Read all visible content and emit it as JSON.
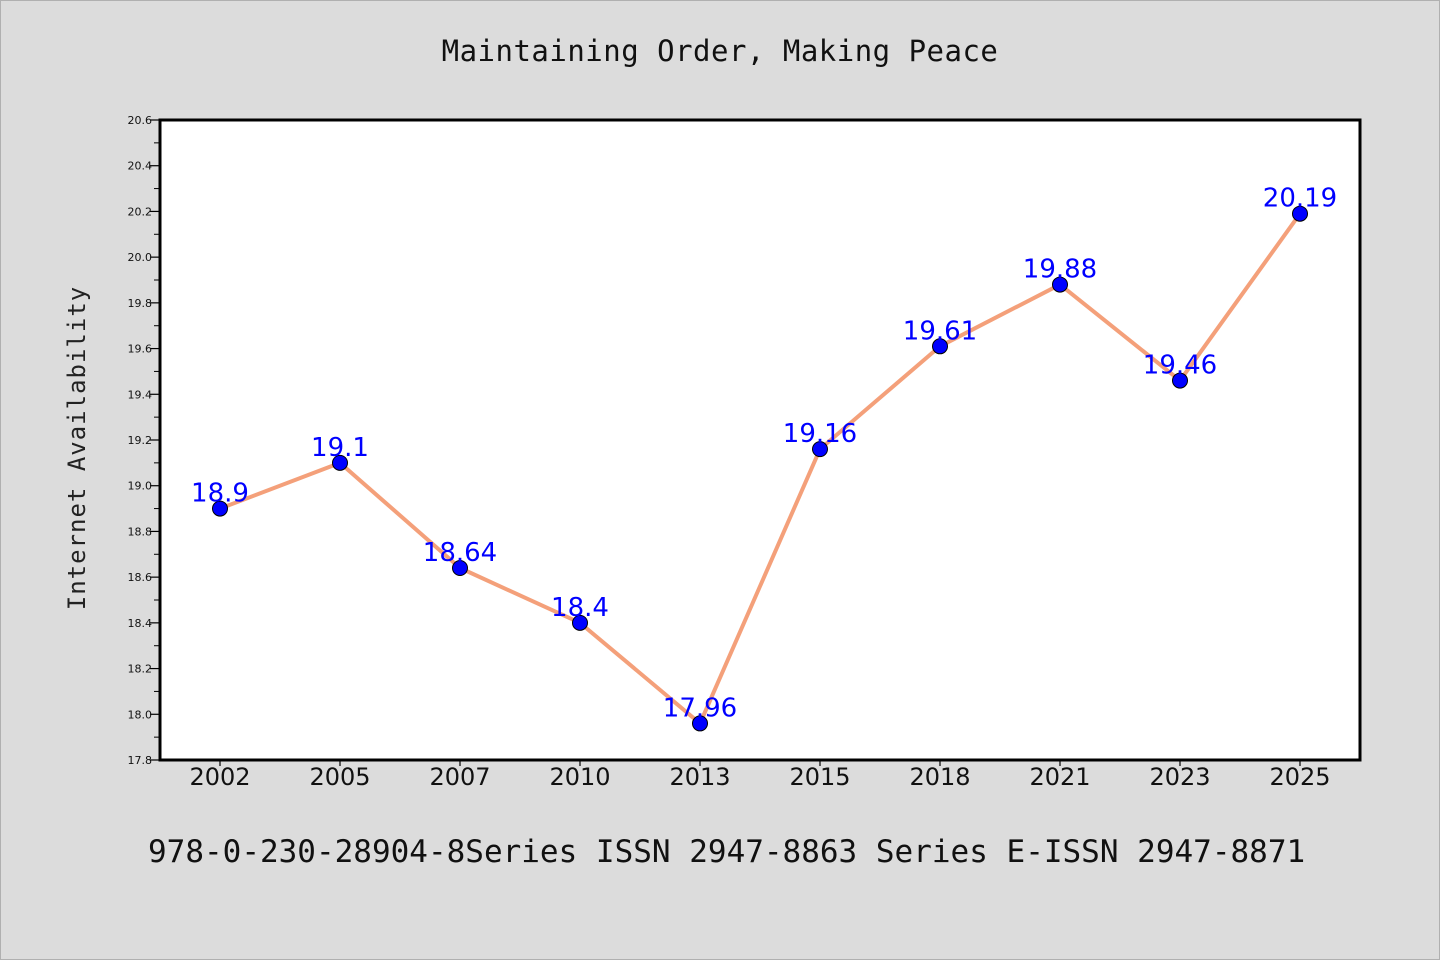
{
  "title": "Maintaining Order, Making Peace",
  "footer": "978-0-230-28904-8Series ISSN 2947-8863 Series E-ISSN 2947-8871",
  "colors": {
    "background": "#dcdcdc",
    "plot_background": "#ffffff",
    "line": "#f4a07a",
    "marker": "#0000ff",
    "data_label": "#0000ff"
  },
  "chart_data": {
    "type": "line",
    "title": "Maintaining Order, Making Peace",
    "xlabel": "",
    "ylabel": "Internet Availability",
    "categories": [
      "2002",
      "2005",
      "2007",
      "2010",
      "2013",
      "2015",
      "2018",
      "2021",
      "2023",
      "2025"
    ],
    "series": [
      {
        "values": [
          18.9,
          19.1,
          18.64,
          18.4,
          17.96,
          19.16,
          19.61,
          19.88,
          19.46,
          20.19
        ]
      }
    ],
    "data_labels": [
      "18.9",
      "19.1",
      "18.64",
      "18.4",
      "17.96",
      "19.16",
      "19.61",
      "19.88",
      "19.46",
      "20.19"
    ],
    "ylim": [
      17.8,
      20.6
    ],
    "yticks": [
      "17.8",
      "18.0",
      "18.2",
      "18.4",
      "18.6",
      "18.8",
      "19.0",
      "19.2",
      "19.4",
      "19.6",
      "19.8",
      "20.0",
      "20.2",
      "20.4",
      "20.6"
    ],
    "grid": false,
    "legend": "none"
  }
}
